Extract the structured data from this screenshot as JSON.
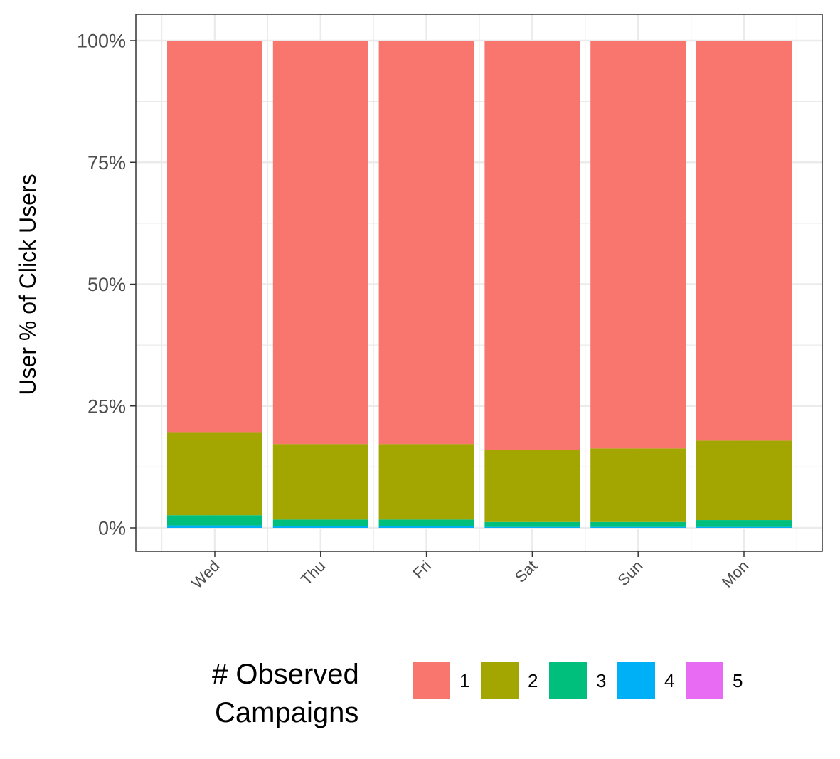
{
  "chart_data": {
    "type": "bar",
    "stacked": true,
    "percent": true,
    "categories": [
      "Wed",
      "Thu",
      "Fri",
      "Sat",
      "Sun",
      "Mon"
    ],
    "series": [
      {
        "name": "1",
        "color": "#F8766D",
        "values": [
          80.5,
          82.8,
          82.8,
          84.0,
          83.7,
          82.1
        ]
      },
      {
        "name": "2",
        "color": "#A3A500",
        "values": [
          16.9,
          15.5,
          15.5,
          14.8,
          15.1,
          16.3
        ]
      },
      {
        "name": "3",
        "color": "#00BF7D",
        "values": [
          2.1,
          1.4,
          1.4,
          1.0,
          1.0,
          1.4
        ]
      },
      {
        "name": "4",
        "color": "#00B0F6",
        "values": [
          0.5,
          0.3,
          0.3,
          0.2,
          0.2,
          0.2
        ]
      },
      {
        "name": "5",
        "color": "#E76BF3",
        "values": [
          0.0,
          0.0,
          0.0,
          0.0,
          0.0,
          0.0
        ]
      }
    ],
    "y_ticks": [
      "0%",
      "25%",
      "50%",
      "75%",
      "100%"
    ],
    "ylim": [
      0,
      100
    ],
    "xlabel": "",
    "ylabel": "User % of Click Users",
    "legend": {
      "title_line1": "# Observed",
      "title_line2": "Campaigns",
      "position": "bottom"
    },
    "grid": true
  }
}
